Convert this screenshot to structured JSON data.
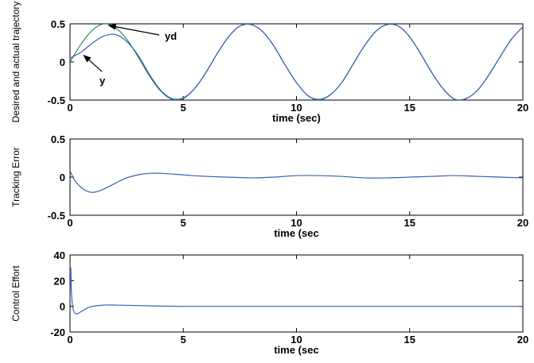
{
  "chart_data": [
    {
      "type": "line",
      "ylabel": "Desired and actual trajectory",
      "xlabel": "time (sec)",
      "xlim": [
        0,
        20
      ],
      "ylim": [
        -0.5,
        0.5
      ],
      "xticks": [
        0,
        5,
        10,
        15,
        20
      ],
      "yticks": [
        -0.5,
        0,
        0.5
      ],
      "grid": false,
      "series": [
        {
          "name": "yd",
          "color": "#2e8b57",
          "x": [
            0,
            0.5,
            1,
            1.5,
            2,
            2.5,
            3,
            3.5,
            4,
            4.5,
            5,
            5.5,
            6,
            6.5,
            7,
            7.5,
            8,
            8.5,
            9,
            9.5,
            10,
            10.5,
            11,
            11.5,
            12,
            12.5,
            13,
            13.5,
            14,
            14.5,
            15,
            15.5,
            16,
            16.5,
            17,
            17.5,
            18,
            18.5,
            19,
            19.5,
            20
          ],
          "values": [
            0,
            0.24,
            0.42,
            0.5,
            0.45,
            0.3,
            0.07,
            -0.18,
            -0.38,
            -0.49,
            -0.48,
            -0.35,
            -0.14,
            0.11,
            0.33,
            0.47,
            0.49,
            0.4,
            0.21,
            -0.04,
            -0.27,
            -0.44,
            -0.5,
            -0.43,
            -0.27,
            -0.03,
            0.21,
            0.4,
            0.49,
            0.47,
            0.33,
            0.1,
            -0.15,
            -0.36,
            -0.49,
            -0.48,
            -0.37,
            -0.17,
            0.07,
            0.3,
            0.46
          ]
        },
        {
          "name": "y",
          "color": "#3a5fb0",
          "x": [
            0,
            0.5,
            1,
            1.5,
            2,
            2.5,
            3,
            3.5,
            4,
            4.5,
            5,
            5.5,
            6,
            6.5,
            7,
            7.5,
            8,
            8.5,
            9,
            9.5,
            10,
            10.5,
            11,
            11.5,
            12,
            12.5,
            13,
            13.5,
            14,
            14.5,
            15,
            15.5,
            16,
            16.5,
            17,
            17.5,
            18,
            18.5,
            19,
            19.5,
            20
          ],
          "values": [
            0.05,
            0.13,
            0.25,
            0.34,
            0.36,
            0.27,
            0.09,
            -0.16,
            -0.37,
            -0.48,
            -0.47,
            -0.35,
            -0.14,
            0.11,
            0.33,
            0.47,
            0.49,
            0.4,
            0.21,
            -0.04,
            -0.27,
            -0.44,
            -0.49,
            -0.43,
            -0.27,
            -0.03,
            0.21,
            0.4,
            0.49,
            0.47,
            0.33,
            0.1,
            -0.15,
            -0.36,
            -0.49,
            -0.48,
            -0.37,
            -0.17,
            0.07,
            0.3,
            0.46
          ]
        }
      ],
      "annotations": [
        {
          "text": "yd",
          "points_to": {
            "x": 1.5,
            "y": 0.5
          }
        },
        {
          "text": "y",
          "points_to": {
            "x": 0.5,
            "y": 0.13
          }
        }
      ]
    },
    {
      "type": "line",
      "ylabel": "Tracking Error",
      "xlabel": "time (sec",
      "xlim": [
        0,
        20
      ],
      "ylim": [
        -0.5,
        0.5
      ],
      "xticks": [
        0,
        5,
        10,
        15,
        20
      ],
      "yticks": [
        -0.5,
        0,
        0.5
      ],
      "grid": false,
      "series": [
        {
          "color": "#3a5fb0",
          "x": [
            0,
            0.2,
            0.4,
            0.6,
            0.8,
            1.0,
            1.3,
            1.6,
            2.0,
            2.5,
            3.0,
            3.5,
            4.0,
            5,
            6,
            7,
            8,
            9,
            10,
            11,
            12,
            13,
            14,
            15,
            16,
            17,
            18,
            19,
            20
          ],
          "values": [
            0.08,
            -0.04,
            -0.11,
            -0.16,
            -0.19,
            -0.2,
            -0.18,
            -0.14,
            -0.08,
            -0.01,
            0.03,
            0.05,
            0.05,
            0.03,
            0.01,
            0.0,
            -0.01,
            0.0,
            0.02,
            0.02,
            0.01,
            -0.01,
            -0.01,
            0.0,
            0.01,
            0.02,
            0.01,
            0.0,
            -0.01
          ]
        }
      ]
    },
    {
      "type": "line",
      "ylabel": "Control Effort",
      "xlabel": "time (sec",
      "xlim": [
        0,
        20
      ],
      "ylim": [
        -20,
        40
      ],
      "xticks": [
        0,
        5,
        10,
        15,
        20
      ],
      "yticks": [
        -20,
        0,
        20,
        40
      ],
      "grid": false,
      "series": [
        {
          "color": "#3a5fb0",
          "x": [
            0,
            0.03,
            0.06,
            0.1,
            0.15,
            0.2,
            0.3,
            0.4,
            0.6,
            0.8,
            1.0,
            1.5,
            2.0,
            3,
            4,
            5,
            6,
            7,
            8,
            9,
            10,
            11,
            12,
            13,
            14,
            15,
            16,
            17,
            18,
            19,
            20
          ],
          "values": [
            5,
            30,
            12,
            2,
            -3,
            -5,
            -6,
            -5,
            -3,
            -1,
            0,
            1,
            1,
            0.6,
            0.2,
            0,
            0,
            0,
            0,
            0,
            0,
            0,
            0,
            0,
            0,
            0,
            0,
            0,
            0,
            0,
            0
          ]
        }
      ]
    }
  ]
}
